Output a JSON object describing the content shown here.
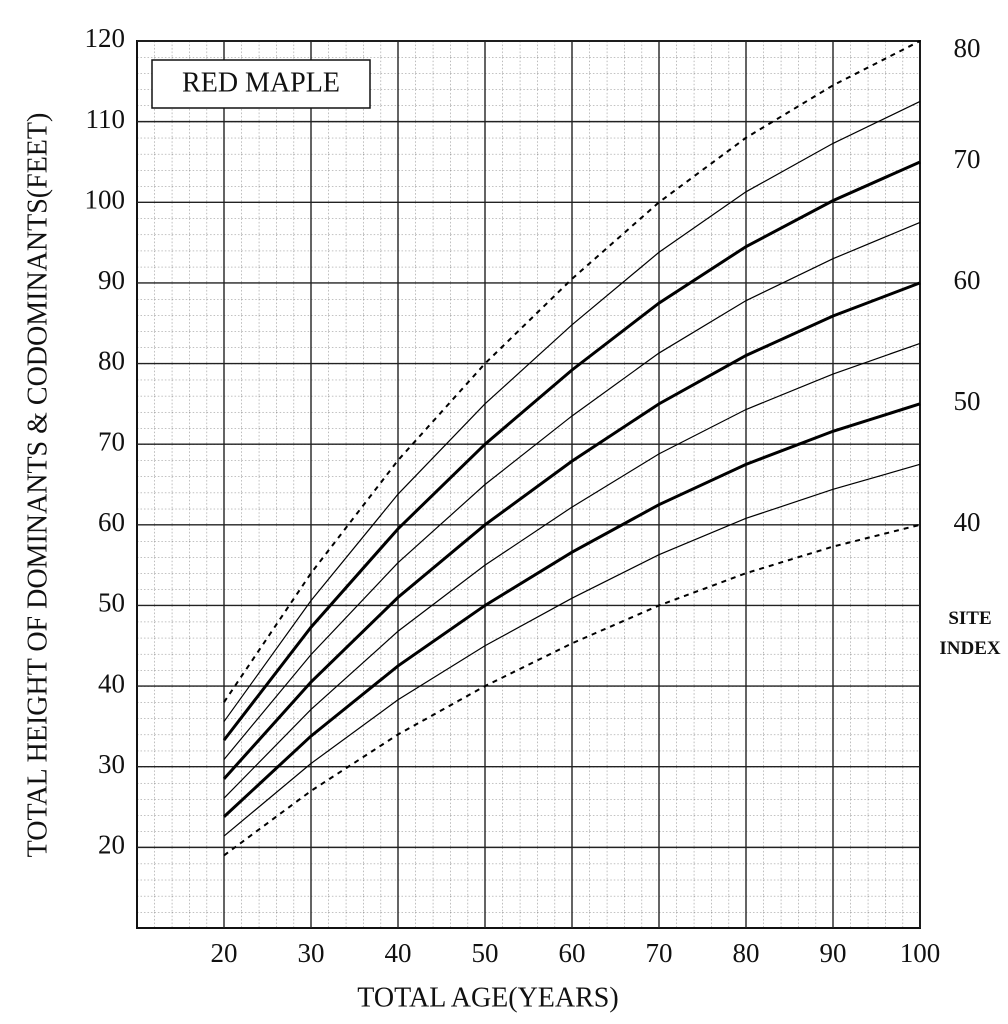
{
  "chart_data": {
    "type": "line",
    "title": "RED MAPLE",
    "x_label": "TOTAL AGE(YEARS)",
    "y_label": "TOTAL HEIGHT OF DOMINANTS & CODOMINANTS(FEET)",
    "series_label": "SITE\nINDEX",
    "x": [
      20,
      30,
      40,
      50,
      60,
      70,
      80,
      90,
      100
    ],
    "xlim": [
      10,
      100
    ],
    "xticks": [
      20,
      30,
      40,
      50,
      60,
      70,
      80,
      90,
      100
    ],
    "ylim": [
      10,
      120
    ],
    "yticks": [
      20,
      30,
      40,
      50,
      60,
      70,
      80,
      90,
      100,
      110,
      120
    ],
    "grid": true,
    "series": [
      {
        "name": "80",
        "color": "#000",
        "line_style": "dashed",
        "values": [
          38,
          54,
          68,
          80,
          90.5,
          100,
          108,
          114.5,
          120
        ]
      },
      {
        "color": "#000",
        "line_style": "thin",
        "values": [
          35.6,
          50.6,
          63.8,
          75,
          84.8,
          93.8,
          101.3,
          107.3,
          112.5
        ]
      },
      {
        "name": "70",
        "color": "#000",
        "line_style": "thick",
        "values": [
          33.3,
          47.3,
          59.5,
          70,
          79.2,
          87.5,
          94.5,
          100.2,
          105
        ]
      },
      {
        "color": "#000",
        "line_style": "thin",
        "values": [
          30.9,
          43.9,
          55.3,
          65,
          73.5,
          81.3,
          87.8,
          93,
          97.5
        ]
      },
      {
        "name": "60",
        "color": "#000",
        "line_style": "thick",
        "values": [
          28.5,
          40.5,
          51,
          60,
          67.9,
          75,
          81,
          85.9,
          90
        ]
      },
      {
        "color": "#000",
        "line_style": "thin",
        "values": [
          26.1,
          37.1,
          46.8,
          55,
          62.2,
          68.8,
          74.3,
          78.7,
          82.5
        ]
      },
      {
        "name": "50",
        "color": "#000",
        "line_style": "thick",
        "values": [
          23.8,
          33.8,
          42.5,
          50,
          56.6,
          62.5,
          67.5,
          71.6,
          75
        ]
      },
      {
        "color": "#000",
        "line_style": "thin",
        "values": [
          21.4,
          30.4,
          38.3,
          45,
          50.9,
          56.3,
          60.8,
          64.4,
          67.5
        ]
      },
      {
        "name": "40",
        "color": "#000",
        "line_style": "dashed",
        "values": [
          19,
          27,
          34,
          40,
          45.3,
          50,
          54,
          57.3,
          60
        ]
      }
    ]
  }
}
